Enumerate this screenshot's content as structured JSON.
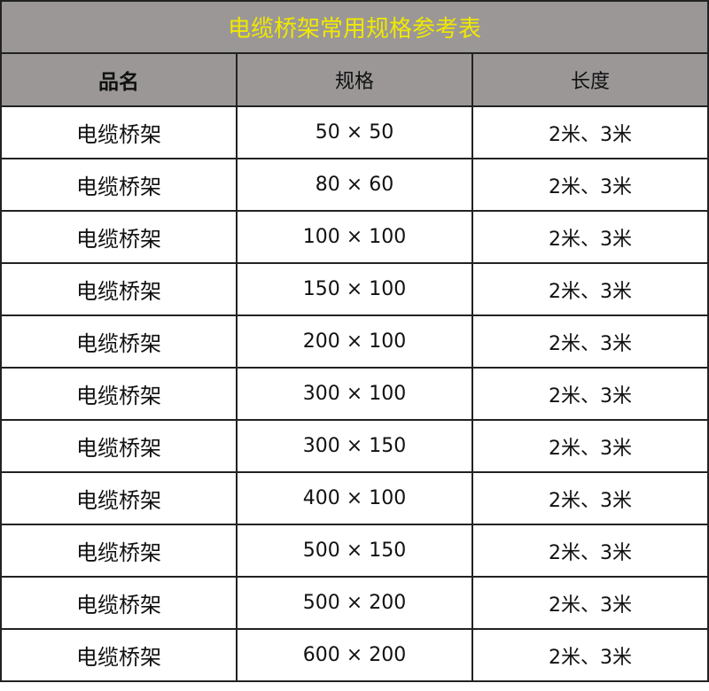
{
  "title": "电缆桥架常用规格参考表",
  "colors": {
    "title_text": "#f0e800",
    "header_bg": "#9b9797",
    "border": "#222222"
  },
  "columns": [
    "品名",
    "规格",
    "长度"
  ],
  "rows": [
    {
      "name": "电缆桥架",
      "spec": "50 × 50",
      "length": "2米、3米"
    },
    {
      "name": "电缆桥架",
      "spec": "80 × 60",
      "length": "2米、3米"
    },
    {
      "name": "电缆桥架",
      "spec": "100 × 100",
      "length": "2米、3米"
    },
    {
      "name": "电缆桥架",
      "spec": "150 × 100",
      "length": "2米、3米"
    },
    {
      "name": "电缆桥架",
      "spec": "200 × 100",
      "length": "2米、3米"
    },
    {
      "name": "电缆桥架",
      "spec": "300 × 100",
      "length": "2米、3米"
    },
    {
      "name": "电缆桥架",
      "spec": "300 × 150",
      "length": "2米、3米"
    },
    {
      "name": "电缆桥架",
      "spec": "400 × 100",
      "length": "2米、3米"
    },
    {
      "name": "电缆桥架",
      "spec": "500 × 150",
      "length": "2米、3米"
    },
    {
      "name": "电缆桥架",
      "spec": "500 × 200",
      "length": "2米、3米"
    },
    {
      "name": "电缆桥架",
      "spec": "600 × 200",
      "length": "2米、3米"
    }
  ]
}
